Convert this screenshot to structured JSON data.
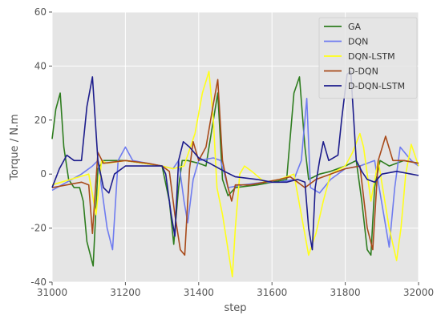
{
  "chart_data": {
    "type": "line",
    "xlabel": "step",
    "ylabel": "Torque / N.m",
    "xlim": [
      31000,
      32000
    ],
    "ylim": [
      -40,
      60
    ],
    "xticks": [
      31000,
      31200,
      31400,
      31600,
      31800,
      32000
    ],
    "yticks": [
      -40,
      -20,
      0,
      20,
      40,
      60
    ],
    "grid": true,
    "legend_position": "top-right",
    "background": "#e5e5e5",
    "series": [
      {
        "name": "GA",
        "color": "#2e7d1f",
        "points": [
          [
            31000,
            13
          ],
          [
            31010,
            24
          ],
          [
            31022,
            30
          ],
          [
            31032,
            10
          ],
          [
            31045,
            -2
          ],
          [
            31060,
            -5
          ],
          [
            31075,
            -5
          ],
          [
            31085,
            -10
          ],
          [
            31095,
            -25
          ],
          [
            31112,
            -34
          ],
          [
            31125,
            2
          ],
          [
            31140,
            5
          ],
          [
            31200,
            5
          ],
          [
            31250,
            4
          ],
          [
            31300,
            3
          ],
          [
            31320,
            -10
          ],
          [
            31332,
            -26
          ],
          [
            31345,
            -5
          ],
          [
            31355,
            5
          ],
          [
            31370,
            5
          ],
          [
            31400,
            4
          ],
          [
            31420,
            3
          ],
          [
            31440,
            20
          ],
          [
            31452,
            30
          ],
          [
            31465,
            -2
          ],
          [
            31480,
            -8
          ],
          [
            31500,
            -5
          ],
          [
            31560,
            -4
          ],
          [
            31600,
            -3
          ],
          [
            31640,
            -2
          ],
          [
            31660,
            30
          ],
          [
            31675,
            36
          ],
          [
            31690,
            10
          ],
          [
            31700,
            -2
          ],
          [
            31730,
            0
          ],
          [
            31760,
            1
          ],
          [
            31800,
            3
          ],
          [
            31830,
            5
          ],
          [
            31845,
            -10
          ],
          [
            31860,
            -28
          ],
          [
            31870,
            -30
          ],
          [
            31880,
            -5
          ],
          [
            31895,
            5
          ],
          [
            31920,
            3
          ],
          [
            31960,
            5
          ],
          [
            32000,
            4
          ]
        ]
      },
      {
        "name": "DQN",
        "color": "#6f7cf0",
        "points": [
          [
            31000,
            -6
          ],
          [
            31040,
            -3
          ],
          [
            31080,
            0
          ],
          [
            31110,
            3
          ],
          [
            31125,
            5
          ],
          [
            31150,
            -20
          ],
          [
            31165,
            -28
          ],
          [
            31180,
            5
          ],
          [
            31200,
            10
          ],
          [
            31220,
            5
          ],
          [
            31260,
            4
          ],
          [
            31300,
            3
          ],
          [
            31330,
            2
          ],
          [
            31345,
            5
          ],
          [
            31360,
            -10
          ],
          [
            31370,
            -18
          ],
          [
            31385,
            -2
          ],
          [
            31400,
            5
          ],
          [
            31440,
            6
          ],
          [
            31460,
            5
          ],
          [
            31480,
            -5
          ],
          [
            31520,
            -4
          ],
          [
            31580,
            -3
          ],
          [
            31620,
            -3
          ],
          [
            31660,
            -2
          ],
          [
            31680,
            5
          ],
          [
            31695,
            28
          ],
          [
            31705,
            -5
          ],
          [
            31730,
            -7
          ],
          [
            31760,
            -2
          ],
          [
            31800,
            2
          ],
          [
            31840,
            3
          ],
          [
            31880,
            5
          ],
          [
            31920,
            -27
          ],
          [
            31935,
            -5
          ],
          [
            31950,
            10
          ],
          [
            31980,
            5
          ],
          [
            32000,
            3
          ]
        ]
      },
      {
        "name": "DQN-LSTM",
        "color": "#ffff1a",
        "points": [
          [
            31000,
            -4
          ],
          [
            31050,
            -2
          ],
          [
            31100,
            0
          ],
          [
            31120,
            -15
          ],
          [
            31135,
            5
          ],
          [
            31150,
            4
          ],
          [
            31200,
            5
          ],
          [
            31250,
            4
          ],
          [
            31300,
            3
          ],
          [
            31330,
            2
          ],
          [
            31360,
            3
          ],
          [
            31390,
            15
          ],
          [
            31410,
            30
          ],
          [
            31428,
            38
          ],
          [
            31440,
            20
          ],
          [
            31450,
            -5
          ],
          [
            31465,
            -15
          ],
          [
            31480,
            -28
          ],
          [
            31492,
            -38
          ],
          [
            31500,
            -20
          ],
          [
            31512,
            0
          ],
          [
            31525,
            3
          ],
          [
            31545,
            1
          ],
          [
            31580,
            -3
          ],
          [
            31620,
            -2
          ],
          [
            31660,
            0
          ],
          [
            31680,
            -15
          ],
          [
            31700,
            -30
          ],
          [
            31720,
            -22
          ],
          [
            31740,
            -10
          ],
          [
            31760,
            0
          ],
          [
            31800,
            3
          ],
          [
            31820,
            8
          ],
          [
            31840,
            15
          ],
          [
            31850,
            10
          ],
          [
            31870,
            -10
          ],
          [
            31890,
            5
          ],
          [
            31920,
            -20
          ],
          [
            31940,
            -32
          ],
          [
            31952,
            -20
          ],
          [
            31965,
            0
          ],
          [
            31980,
            11
          ],
          [
            32000,
            3
          ]
        ]
      },
      {
        "name": "D-DQN",
        "color": "#a84a1a",
        "points": [
          [
            31000,
            -5
          ],
          [
            31040,
            -4
          ],
          [
            31080,
            -3
          ],
          [
            31100,
            -4
          ],
          [
            31110,
            -22
          ],
          [
            31125,
            8
          ],
          [
            31140,
            4
          ],
          [
            31200,
            5
          ],
          [
            31260,
            4
          ],
          [
            31300,
            3
          ],
          [
            31320,
            1
          ],
          [
            31335,
            -15
          ],
          [
            31350,
            -28
          ],
          [
            31362,
            -30
          ],
          [
            31375,
            2
          ],
          [
            31385,
            12
          ],
          [
            31400,
            5
          ],
          [
            31420,
            10
          ],
          [
            31440,
            26
          ],
          [
            31452,
            35
          ],
          [
            31465,
            5
          ],
          [
            31480,
            -5
          ],
          [
            31490,
            -10
          ],
          [
            31500,
            -4
          ],
          [
            31540,
            -4
          ],
          [
            31580,
            -3
          ],
          [
            31620,
            -2
          ],
          [
            31650,
            -1
          ],
          [
            31670,
            -3
          ],
          [
            31690,
            -5
          ],
          [
            31720,
            -2
          ],
          [
            31760,
            0
          ],
          [
            31800,
            2
          ],
          [
            31840,
            3
          ],
          [
            31860,
            -20
          ],
          [
            31875,
            -28
          ],
          [
            31890,
            5
          ],
          [
            31910,
            14
          ],
          [
            31930,
            5
          ],
          [
            31960,
            5
          ],
          [
            32000,
            4
          ]
        ]
      },
      {
        "name": "D-DQN-LSTM",
        "color": "#1c1c8c",
        "points": [
          [
            31000,
            -5
          ],
          [
            31020,
            2
          ],
          [
            31040,
            7
          ],
          [
            31060,
            5
          ],
          [
            31080,
            5
          ],
          [
            31095,
            25
          ],
          [
            31110,
            36
          ],
          [
            31125,
            5
          ],
          [
            31140,
            -5
          ],
          [
            31155,
            -7
          ],
          [
            31170,
            0
          ],
          [
            31200,
            3
          ],
          [
            31250,
            3
          ],
          [
            31300,
            3
          ],
          [
            31310,
            0
          ],
          [
            31325,
            -15
          ],
          [
            31335,
            -23
          ],
          [
            31345,
            5
          ],
          [
            31358,
            12
          ],
          [
            31375,
            10
          ],
          [
            31400,
            6
          ],
          [
            31430,
            4
          ],
          [
            31470,
            1
          ],
          [
            31500,
            -1
          ],
          [
            31560,
            -2
          ],
          [
            31600,
            -3
          ],
          [
            31640,
            -3
          ],
          [
            31670,
            -2
          ],
          [
            31690,
            -3
          ],
          [
            31700,
            -20
          ],
          [
            31710,
            -28
          ],
          [
            31718,
            -5
          ],
          [
            31730,
            5
          ],
          [
            31740,
            12
          ],
          [
            31755,
            5
          ],
          [
            31780,
            7
          ],
          [
            31790,
            20
          ],
          [
            31805,
            37
          ],
          [
            31815,
            38
          ],
          [
            31830,
            5
          ],
          [
            31845,
            1
          ],
          [
            31860,
            -2
          ],
          [
            31880,
            -3
          ],
          [
            31900,
            0
          ],
          [
            31940,
            1
          ],
          [
            31980,
            0
          ],
          [
            32000,
            -0.5
          ]
        ]
      }
    ]
  }
}
